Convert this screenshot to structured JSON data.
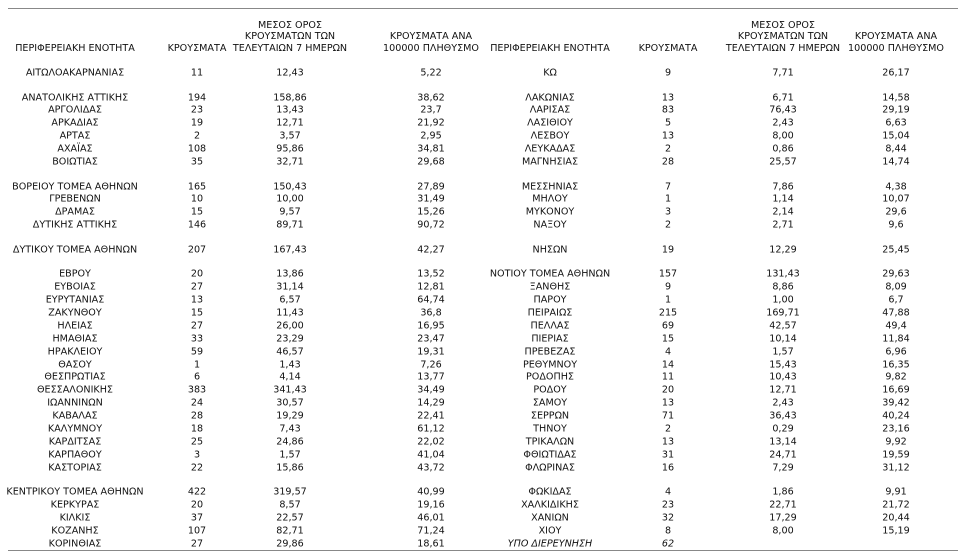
{
  "header": {
    "columns_left": [
      "ΠΕΡΙΦΕΡΕΙΑΚΗ ΕΝΟΤΗΤΑ",
      "ΚΡΟΥΣΜΑΤΑ",
      "ΜΕΣΟΣ ΟΡΟΣ ΚΡΟΥΣΜΑΤΩΝ ΤΩΝ ΤΕΛΕΥΤΑΙΩΝ 7 ΗΜΕΡΩΝ",
      "ΚΡΟΥΣΜΑΤΑ ΑΝΑ 100000 ΠΛΗΘΥΣΜΟ"
    ],
    "columns_right": [
      "ΠΕΡΙΦΕΡΕΙΑΚΗ ΕΝΟΤΗΤΑ",
      "ΚΡΟΥΣΜΑΤΑ",
      "ΜΕΣΟΣ ΟΡΟΣ ΚΡΟΥΣΜΑΤΩΝ ΤΩΝ ΤΕΛΕΥΤΑΙΩΝ 7 ΗΜΕΡΩΝ",
      "ΚΡΟΥΣΜΑΤΑ ΑΝΑ 100000 ΠΛΗΘΥΣΜΟ"
    ]
  },
  "table": {
    "groups": [
      [
        {
          "left": [
            "ΑΙΤΩΛΟΑΚΑΡΝΑΝΙΑΣ",
            "11",
            "12,43",
            "5,22"
          ],
          "right": [
            "ΚΩ",
            "9",
            "7,71",
            "26,17"
          ]
        }
      ],
      [
        {
          "left": [
            "ΑΝΑΤΟΛΙΚΗΣ ΑΤΤΙΚΗΣ",
            "194",
            "158,86",
            "38,62"
          ],
          "right": [
            "ΛΑΚΩΝΙΑΣ",
            "13",
            "6,71",
            "14,58"
          ]
        },
        {
          "left": [
            "ΑΡΓΟΛΙΔΑΣ",
            "23",
            "13,43",
            "23,7"
          ],
          "right": [
            "ΛΑΡΙΣΑΣ",
            "83",
            "76,43",
            "29,19"
          ]
        },
        {
          "left": [
            "ΑΡΚΑΔΙΑΣ",
            "19",
            "12,71",
            "21,92"
          ],
          "right": [
            "ΛΑΣΙΘΙΟΥ",
            "5",
            "2,43",
            "6,63"
          ]
        },
        {
          "left": [
            "ΑΡΤΑΣ",
            "2",
            "3,57",
            "2,95"
          ],
          "right": [
            "ΛΕΣΒΟΥ",
            "13",
            "8,00",
            "15,04"
          ]
        },
        {
          "left": [
            "ΑΧΑΪΑΣ",
            "108",
            "95,86",
            "34,81"
          ],
          "right": [
            "ΛΕΥΚΑΔΑΣ",
            "2",
            "0,86",
            "8,44"
          ]
        },
        {
          "left": [
            "ΒΟΙΩΤΙΑΣ",
            "35",
            "32,71",
            "29,68"
          ],
          "right": [
            "ΜΑΓΝΗΣΙΑΣ",
            "28",
            "25,57",
            "14,74"
          ]
        }
      ],
      [
        {
          "left": [
            "ΒΟΡΕΙΟΥ ΤΟΜΕΑ ΑΘΗΝΩΝ",
            "165",
            "150,43",
            "27,89"
          ],
          "right": [
            "ΜΕΣΣΗΝΙΑΣ",
            "7",
            "7,86",
            "4,38"
          ]
        },
        {
          "left": [
            "ΓΡΕΒΕΝΩΝ",
            "10",
            "10,00",
            "31,49"
          ],
          "right": [
            "ΜΗΛΟΥ",
            "1",
            "1,14",
            "10,07"
          ]
        },
        {
          "left": [
            "ΔΡΑΜΑΣ",
            "15",
            "9,57",
            "15,26"
          ],
          "right": [
            "ΜΥΚΟΝΟΥ",
            "3",
            "2,14",
            "29,6"
          ]
        },
        {
          "left": [
            "ΔΥΤΙΚΗΣ ΑΤΤΙΚΗΣ",
            "146",
            "89,71",
            "90,72"
          ],
          "right": [
            "ΝΑΞΟΥ",
            "2",
            "2,71",
            "9,6"
          ]
        }
      ],
      [
        {
          "left": [
            "ΔΥΤΙΚΟΥ ΤΟΜΕΑ ΑΘΗΝΩΝ",
            "207",
            "167,43",
            "42,27"
          ],
          "right": [
            "ΝΗΣΩΝ",
            "19",
            "12,29",
            "25,45"
          ]
        }
      ],
      [
        {
          "left": [
            "ΕΒΡΟΥ",
            "20",
            "13,86",
            "13,52"
          ],
          "right": [
            "ΝΟΤΙΟΥ ΤΟΜΕΑ ΑΘΗΝΩΝ",
            "157",
            "131,43",
            "29,63"
          ]
        },
        {
          "left": [
            "ΕΥΒΟΙΑΣ",
            "27",
            "31,14",
            "12,81"
          ],
          "right": [
            "ΞΑΝΘΗΣ",
            "9",
            "8,86",
            "8,09"
          ]
        },
        {
          "left": [
            "ΕΥΡΥΤΑΝΙΑΣ",
            "13",
            "6,57",
            "64,74"
          ],
          "right": [
            "ΠΑΡΟΥ",
            "1",
            "1,00",
            "6,7"
          ]
        },
        {
          "left": [
            "ΖΑΚΥΝΘΟΥ",
            "15",
            "11,43",
            "36,8"
          ],
          "right": [
            "ΠΕΙΡΑΙΩΣ",
            "215",
            "169,71",
            "47,88"
          ]
        },
        {
          "left": [
            "ΗΛΕΙΑΣ",
            "27",
            "26,00",
            "16,95"
          ],
          "right": [
            "ΠΕΛΛΑΣ",
            "69",
            "42,57",
            "49,4"
          ]
        },
        {
          "left": [
            "ΗΜΑΘΙΑΣ",
            "33",
            "23,29",
            "23,47"
          ],
          "right": [
            "ΠΙΕΡΙΑΣ",
            "15",
            "10,14",
            "11,84"
          ]
        },
        {
          "left": [
            "ΗΡΑΚΛΕΙΟΥ",
            "59",
            "46,57",
            "19,31"
          ],
          "right": [
            "ΠΡΕΒΕΖΑΣ",
            "4",
            "1,57",
            "6,96"
          ]
        },
        {
          "left": [
            "ΘΑΣΟΥ",
            "1",
            "1,43",
            "7,26"
          ],
          "right": [
            "ΡΕΘΥΜΝΟΥ",
            "14",
            "15,43",
            "16,35"
          ]
        },
        {
          "left": [
            "ΘΕΣΠΡΩΤΙΑΣ",
            "6",
            "4,14",
            "13,77"
          ],
          "right": [
            "ΡΟΔΟΠΗΣ",
            "11",
            "10,43",
            "9,82"
          ]
        },
        {
          "left": [
            "ΘΕΣΣΑΛΟΝΙΚΗΣ",
            "383",
            "341,43",
            "34,49"
          ],
          "right": [
            "ΡΟΔΟΥ",
            "20",
            "12,71",
            "16,69"
          ]
        },
        {
          "left": [
            "ΙΩΑΝΝΙΝΩΝ",
            "24",
            "30,57",
            "14,29"
          ],
          "right": [
            "ΣΑΜΟΥ",
            "13",
            "2,43",
            "39,42"
          ]
        },
        {
          "left": [
            "ΚΑΒΑΛΑΣ",
            "28",
            "19,29",
            "22,41"
          ],
          "right": [
            "ΣΕΡΡΩΝ",
            "71",
            "36,43",
            "40,24"
          ]
        },
        {
          "left": [
            "ΚΑΛΥΜΝΟΥ",
            "18",
            "7,43",
            "61,12"
          ],
          "right": [
            "ΤΗΝΟΥ",
            "2",
            "0,29",
            "23,16"
          ]
        },
        {
          "left": [
            "ΚΑΡΔΙΤΣΑΣ",
            "25",
            "24,86",
            "22,02"
          ],
          "right": [
            "ΤΡΙΚΑΛΩΝ",
            "13",
            "13,14",
            "9,92"
          ]
        },
        {
          "left": [
            "ΚΑΡΠΑΘΟΥ",
            "3",
            "1,57",
            "41,04"
          ],
          "right": [
            "ΦΘΙΩΤΙΔΑΣ",
            "31",
            "24,71",
            "19,59"
          ]
        },
        {
          "left": [
            "ΚΑΣΤΟΡΙΑΣ",
            "22",
            "15,86",
            "43,72"
          ],
          "right": [
            "ΦΛΩΡΙΝΑΣ",
            "16",
            "7,29",
            "31,12"
          ]
        }
      ],
      [
        {
          "left": [
            "ΚΕΝΤΡΙΚΟΥ ΤΟΜΕΑ ΑΘΗΝΩΝ",
            "422",
            "319,57",
            "40,99"
          ],
          "right": [
            "ΦΩΚΙΔΑΣ",
            "4",
            "1,86",
            "9,91"
          ]
        },
        {
          "left": [
            "ΚΕΡΚΥΡΑΣ",
            "20",
            "8,57",
            "19,16"
          ],
          "right": [
            "ΧΑΛΚΙΔΙΚΗΣ",
            "23",
            "22,71",
            "21,72"
          ]
        },
        {
          "left": [
            "ΚΙΛΚΙΣ",
            "37",
            "22,57",
            "46,01"
          ],
          "right": [
            "ΧΑΝΙΩΝ",
            "32",
            "17,29",
            "20,44"
          ]
        },
        {
          "left": [
            "ΚΟΖΑΝΗΣ",
            "107",
            "82,71",
            "71,24"
          ],
          "right": [
            "ΧΙΟΥ",
            "8",
            "8,00",
            "15,19"
          ]
        },
        {
          "left": [
            "ΚΟΡΙΝΘΙΑΣ",
            "27",
            "29,86",
            "18,61"
          ],
          "right": [
            "ΥΠΟ ΔΙΕΡΕΥΝΗΣΗ",
            "62"
          ]
        }
      ]
    ]
  }
}
